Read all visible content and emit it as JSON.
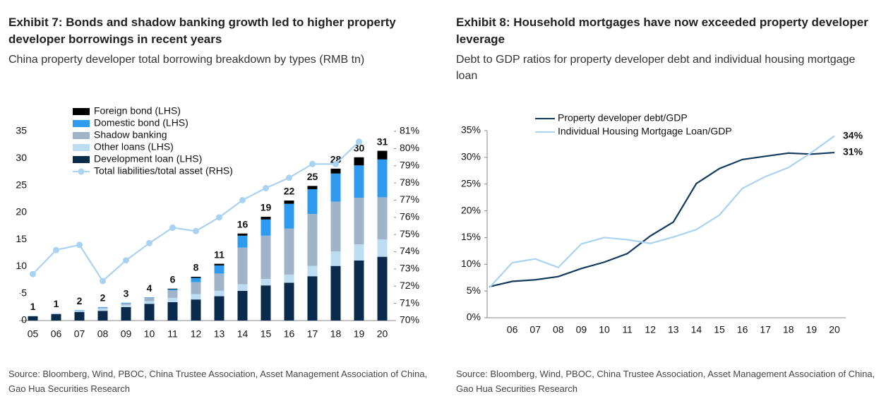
{
  "chart_data": [
    {
      "type": "bar",
      "stacked": true,
      "title": "Exhibit 7: Bonds and shadow banking growth led to higher property developer borrowings in recent years",
      "subtitle": "China property developer total borrowing breakdown by types (RMB tn)",
      "source": "Source: Bloomberg, Wind, PBOC, China Trustee Association, Asset Management Association of China, Gao Hua Securities Research",
      "categories": [
        "05",
        "06",
        "07",
        "08",
        "09",
        "10",
        "11",
        "12",
        "13",
        "14",
        "15",
        "16",
        "17",
        "18",
        "19",
        "20"
      ],
      "series": [
        {
          "name": "Development loan (LHS)",
          "color": "#0b2b4c",
          "values": [
            0.8,
            1.2,
            1.6,
            1.8,
            2.5,
            3.1,
            3.4,
            3.9,
            4.5,
            5.5,
            6.5,
            7.0,
            8.2,
            10.1,
            11.1,
            11.8
          ]
        },
        {
          "name": "Other loans (LHS)",
          "color": "#bcdcf2",
          "values": [
            0.1,
            0.2,
            0.2,
            0.4,
            0.4,
            0.5,
            0.8,
            1.0,
            1.0,
            1.2,
            1.2,
            1.5,
            1.9,
            2.7,
            3.0,
            3.2
          ]
        },
        {
          "name": "Shadow banking",
          "color": "#9fb4c9",
          "values": [
            0,
            0,
            0,
            0.2,
            0.3,
            0.6,
            1.4,
            2.2,
            3.2,
            6.8,
            8.0,
            8.5,
            9.6,
            9.2,
            8.6,
            7.8
          ]
        },
        {
          "name": "Domestic bond (LHS)",
          "color": "#2f9bef",
          "values": [
            0,
            0,
            0.1,
            0.1,
            0.1,
            0.1,
            0.2,
            0.8,
            1.5,
            2.2,
            3.0,
            4.6,
            4.6,
            5.2,
            6.0,
            7.0
          ]
        },
        {
          "name": "Foreign bond (LHS)",
          "color": "#000000",
          "values": [
            0,
            0,
            0,
            0,
            0,
            0,
            0.1,
            0.2,
            0.3,
            0.4,
            0.5,
            0.6,
            0.6,
            0.9,
            1.5,
            1.6
          ]
        },
        {
          "name": "Total liabilities/total asset (RHS)",
          "color": "#a9d3f0",
          "type": "line",
          "axis": "y2",
          "values": [
            72.7,
            74.1,
            74.4,
            72.3,
            73.5,
            74.5,
            75.4,
            75.2,
            76.0,
            77.0,
            77.7,
            78.3,
            79.1,
            79.1,
            80.4,
            null
          ]
        }
      ],
      "total_labels": [
        1,
        1,
        2,
        2,
        3,
        4,
        6,
        8,
        11,
        16,
        19,
        22,
        25,
        28,
        30,
        31
      ],
      "ylim": [
        0,
        35
      ],
      "yticks": [
        0,
        5,
        10,
        15,
        20,
        25,
        30,
        35
      ],
      "y2lim": [
        70,
        81
      ],
      "y2ticks": [
        {
          "value": 70,
          "label": "70%"
        },
        {
          "value": 71,
          "label": "71%"
        },
        {
          "value": 72,
          "label": "72%"
        },
        {
          "value": 73,
          "label": "73%"
        },
        {
          "value": 74,
          "label": "74%"
        },
        {
          "value": 75,
          "label": "75%"
        },
        {
          "value": 76,
          "label": "76%"
        },
        {
          "value": 77,
          "label": "77%"
        },
        {
          "value": 78,
          "label": "78%"
        },
        {
          "value": 79,
          "label": "79%"
        },
        {
          "value": 80,
          "label": "80%"
        },
        {
          "value": 81,
          "label": "81%"
        }
      ]
    },
    {
      "type": "line",
      "title": "Exhibit 8: Household mortgages have now exceeded property developer leverage",
      "subtitle": "Debt to GDP ratios for property developer debt and individual housing mortgage loan",
      "source": "Source: Bloomberg, Wind, PBOC, China Trustee Association, Asset Management Association of China, Gao Hua Securities Research",
      "categories": [
        null,
        "06",
        "07",
        "08",
        "09",
        "10",
        "11",
        "12",
        "13",
        "14",
        "15",
        "16",
        "17",
        "18",
        "19",
        "20"
      ],
      "series": [
        {
          "name": "Property developer debt/GDP",
          "color": "#123a5e",
          "end_label": "31%",
          "values": [
            5.8,
            6.8,
            7.1,
            7.7,
            9.2,
            10.4,
            12.0,
            15.3,
            17.9,
            25.1,
            27.9,
            29.6,
            30.2,
            30.8,
            30.6,
            30.9
          ]
        },
        {
          "name": "Individual Housing Mortgage Loan/GDP",
          "color": "#a9d3f0",
          "end_label": "34%",
          "values": [
            5.6,
            10.3,
            11.0,
            9.4,
            13.8,
            15.0,
            14.6,
            13.9,
            15.1,
            16.5,
            19.2,
            24.2,
            26.4,
            28.1,
            30.9,
            34.0
          ]
        }
      ],
      "ylim": [
        0,
        35
      ],
      "yticks": [
        {
          "value": 0,
          "label": "0%"
        },
        {
          "value": 5,
          "label": "5%"
        },
        {
          "value": 10,
          "label": "10%"
        },
        {
          "value": 15,
          "label": "15%"
        },
        {
          "value": 20,
          "label": "20%"
        },
        {
          "value": 25,
          "label": "25%"
        },
        {
          "value": 30,
          "label": "30%"
        },
        {
          "value": 35,
          "label": "35%"
        }
      ]
    }
  ]
}
